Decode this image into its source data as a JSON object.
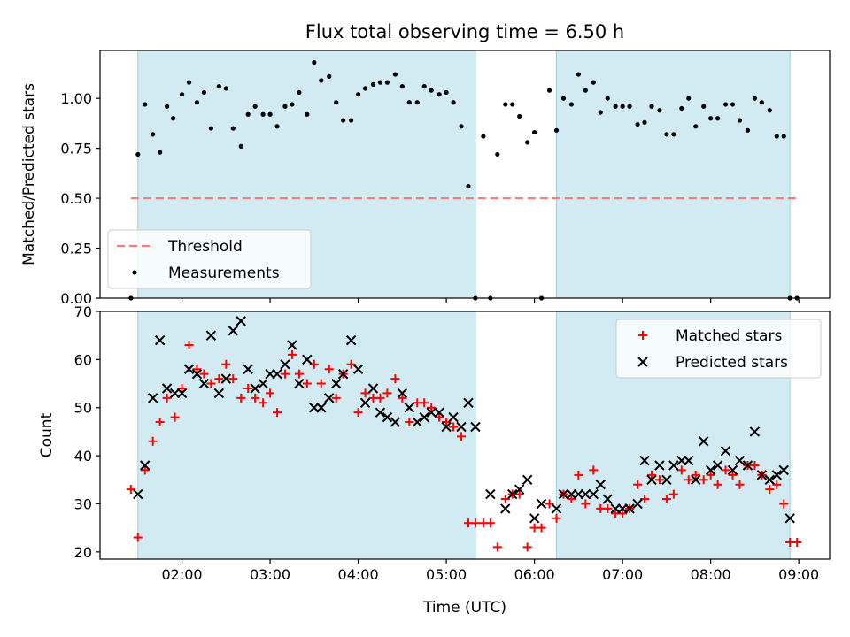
{
  "chart_data": [
    {
      "type": "scatter",
      "title": "Flux total observing time = 6.50 h",
      "xlabel": "",
      "ylabel": "Matched/Predicted stars",
      "x_unit": "hours (UTC)",
      "xlim": [
        1.07,
        9.35
      ],
      "ylim": [
        0.0,
        1.24
      ],
      "yticks": [
        "0.00",
        "0.25",
        "0.50",
        "0.75",
        "1.00"
      ],
      "xticks": [
        "02:00",
        "03:00",
        "04:00",
        "05:00",
        "06:00",
        "07:00",
        "08:00",
        "09:00"
      ],
      "tick_values_x": [
        2,
        3,
        4,
        5,
        6,
        7,
        8,
        9
      ],
      "tick_values_y": [
        0,
        0.25,
        0.5,
        0.75,
        1.0
      ],
      "observing_windows": [
        [
          1.5,
          5.33
        ],
        [
          6.25,
          8.9
        ]
      ],
      "shade_color": "#add8e6",
      "legend_position": "lower-left",
      "series": [
        {
          "name": "Threshold",
          "kind": "line",
          "style": "dashed",
          "color": "#f08080",
          "x": [
            1.42,
            8.98
          ],
          "y": [
            0.5,
            0.5
          ]
        },
        {
          "name": "Measurements",
          "kind": "points",
          "color": "#000000",
          "x": [
            1.42,
            1.5,
            1.58,
            1.67,
            1.75,
            1.83,
            1.9,
            2.0,
            2.08,
            2.17,
            2.25,
            2.33,
            2.42,
            2.5,
            2.58,
            2.67,
            2.75,
            2.83,
            2.92,
            3.0,
            3.08,
            3.17,
            3.25,
            3.33,
            3.42,
            3.5,
            3.58,
            3.67,
            3.75,
            3.83,
            3.92,
            4.0,
            4.08,
            4.17,
            4.25,
            4.33,
            4.42,
            4.5,
            4.58,
            4.67,
            4.75,
            4.83,
            4.92,
            5.0,
            5.08,
            5.17,
            5.25,
            5.33,
            5.42,
            5.5,
            5.58,
            5.67,
            5.75,
            5.83,
            5.92,
            6.0,
            6.08,
            6.17,
            6.25,
            6.33,
            6.42,
            6.5,
            6.58,
            6.67,
            6.75,
            6.83,
            6.92,
            7.0,
            7.08,
            7.17,
            7.25,
            7.33,
            7.42,
            7.5,
            7.58,
            7.67,
            7.75,
            7.83,
            7.92,
            8.0,
            8.08,
            8.17,
            8.25,
            8.33,
            8.42,
            8.5,
            8.58,
            8.67,
            8.75,
            8.83,
            8.9,
            8.98
          ],
          "y": [
            0.0,
            0.72,
            0.97,
            0.82,
            0.73,
            0.96,
            0.9,
            1.02,
            1.08,
            0.98,
            1.03,
            0.85,
            1.06,
            1.05,
            0.85,
            0.76,
            0.92,
            0.96,
            0.92,
            0.92,
            0.86,
            0.96,
            0.97,
            1.03,
            0.92,
            1.18,
            1.09,
            1.11,
            0.98,
            0.89,
            0.89,
            1.02,
            1.05,
            1.07,
            1.08,
            1.08,
            1.12,
            1.06,
            0.98,
            0.98,
            1.06,
            1.04,
            1.02,
            1.03,
            0.98,
            0.86,
            0.56,
            0.0,
            0.81,
            0.0,
            0.72,
            0.97,
            0.97,
            0.91,
            0.78,
            0.83,
            0.0,
            1.04,
            0.84,
            1.0,
            0.97,
            1.12,
            1.04,
            1.08,
            0.93,
            1.0,
            0.96,
            0.96,
            0.96,
            0.87,
            0.88,
            0.96,
            0.94,
            0.82,
            0.82,
            0.95,
            1.0,
            0.86,
            0.96,
            0.9,
            0.9,
            0.97,
            0.97,
            0.89,
            0.84,
            1.0,
            0.98,
            0.94,
            0.81,
            0.81,
            0.0,
            0.0
          ]
        }
      ]
    },
    {
      "type": "scatter",
      "title": "",
      "xlabel": "Time (UTC)",
      "ylabel": "Count",
      "x_unit": "hours (UTC)",
      "xlim": [
        1.07,
        9.35
      ],
      "ylim": [
        18.5,
        70
      ],
      "yticks": [
        "20",
        "30",
        "40",
        "50",
        "60",
        "70"
      ],
      "xticks": [
        "02:00",
        "03:00",
        "04:00",
        "05:00",
        "06:00",
        "07:00",
        "08:00",
        "09:00"
      ],
      "tick_values_x": [
        2,
        3,
        4,
        5,
        6,
        7,
        8,
        9
      ],
      "tick_values_y": [
        20,
        30,
        40,
        50,
        60,
        70
      ],
      "observing_windows": [
        [
          1.5,
          5.33
        ],
        [
          6.25,
          8.9
        ]
      ],
      "shade_color": "#add8e6",
      "legend_position": "upper-right",
      "series": [
        {
          "name": "Matched stars",
          "marker": "plus",
          "color": "#ff0000",
          "x": [
            1.42,
            1.5,
            1.58,
            1.67,
            1.75,
            1.83,
            1.92,
            2.0,
            2.08,
            2.17,
            2.25,
            2.33,
            2.42,
            2.5,
            2.58,
            2.67,
            2.75,
            2.83,
            2.92,
            3.0,
            3.08,
            3.17,
            3.25,
            3.33,
            3.42,
            3.5,
            3.58,
            3.67,
            3.75,
            3.83,
            3.92,
            4.0,
            4.08,
            4.17,
            4.25,
            4.33,
            4.42,
            4.5,
            4.58,
            4.67,
            4.75,
            4.83,
            4.92,
            5.0,
            5.08,
            5.17,
            5.25,
            5.33,
            5.42,
            5.5,
            5.58,
            5.67,
            5.75,
            5.83,
            5.92,
            6.0,
            6.08,
            6.17,
            6.25,
            6.33,
            6.42,
            6.5,
            6.58,
            6.67,
            6.75,
            6.83,
            6.92,
            7.0,
            7.08,
            7.17,
            7.25,
            7.33,
            7.42,
            7.5,
            7.58,
            7.67,
            7.75,
            7.83,
            7.92,
            8.0,
            8.08,
            8.17,
            8.25,
            8.33,
            8.42,
            8.5,
            8.58,
            8.67,
            8.75,
            8.83,
            8.9,
            8.98
          ],
          "y": [
            33,
            23,
            37,
            43,
            47,
            52,
            48,
            54,
            63,
            58,
            57,
            55,
            56,
            59,
            56,
            52,
            54,
            52,
            51,
            53,
            49,
            57,
            61,
            57,
            55,
            59,
            55,
            58,
            52,
            57,
            59,
            49,
            53,
            52,
            52,
            53,
            56,
            52,
            47,
            51,
            51,
            50,
            48,
            47,
            46,
            44,
            26,
            26,
            26,
            26,
            21,
            31,
            32,
            32,
            21,
            25,
            25,
            30,
            27,
            32,
            31,
            36,
            30,
            37,
            29,
            29,
            28,
            28,
            29,
            34,
            31,
            36,
            35,
            31,
            32,
            37,
            35,
            36,
            35,
            36,
            34,
            37,
            36,
            34,
            38,
            38,
            36,
            33,
            34,
            30,
            22,
            22
          ]
        },
        {
          "name": "Predicted stars",
          "marker": "x",
          "color": "#000000",
          "x": [
            1.5,
            1.58,
            1.67,
            1.75,
            1.83,
            1.92,
            2.0,
            2.08,
            2.17,
            2.25,
            2.33,
            2.42,
            2.5,
            2.58,
            2.67,
            2.75,
            2.83,
            2.92,
            3.0,
            3.08,
            3.17,
            3.25,
            3.33,
            3.42,
            3.5,
            3.58,
            3.67,
            3.75,
            3.83,
            3.92,
            4.0,
            4.08,
            4.17,
            4.25,
            4.33,
            4.42,
            4.5,
            4.58,
            4.67,
            4.75,
            4.83,
            4.92,
            5.0,
            5.08,
            5.17,
            5.25,
            5.33,
            5.5,
            5.67,
            5.75,
            5.83,
            5.92,
            6.0,
            6.08,
            6.25,
            6.33,
            6.42,
            6.5,
            6.58,
            6.67,
            6.75,
            6.83,
            6.92,
            7.0,
            7.08,
            7.17,
            7.25,
            7.33,
            7.42,
            7.5,
            7.58,
            7.67,
            7.75,
            7.83,
            7.92,
            8.0,
            8.08,
            8.17,
            8.25,
            8.33,
            8.42,
            8.5,
            8.58,
            8.67,
            8.75,
            8.83,
            8.9
          ],
          "y": [
            32,
            38,
            52,
            64,
            54,
            53,
            53,
            58,
            57,
            55,
            65,
            53,
            56,
            66,
            68,
            58,
            54,
            55,
            57,
            57,
            59,
            63,
            55,
            60,
            50,
            50,
            52,
            55,
            57,
            64,
            58,
            51,
            54,
            49,
            48,
            47,
            53,
            50,
            47,
            48,
            49,
            49,
            46,
            48,
            46,
            51,
            46,
            32,
            29,
            32,
            33,
            35,
            27,
            30,
            29,
            32,
            32,
            32,
            32,
            32,
            34,
            31,
            29,
            29,
            29,
            30,
            39,
            35,
            38,
            35,
            38,
            39,
            39,
            35,
            43,
            37,
            38,
            41,
            37,
            39,
            38,
            45,
            36,
            35,
            36,
            37,
            27
          ]
        }
      ]
    }
  ]
}
